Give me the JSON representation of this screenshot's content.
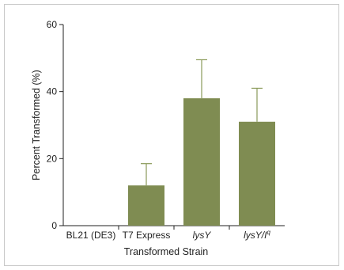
{
  "chart_data": {
    "type": "bar",
    "categories": [
      {
        "label": "BL21 (DE3)",
        "italic": false,
        "sup": ""
      },
      {
        "label": "T7 Express",
        "italic": false,
        "sup": ""
      },
      {
        "label": "lysY",
        "italic": true,
        "sup": ""
      },
      {
        "label": "lysY/I",
        "italic": true,
        "sup": "q"
      }
    ],
    "values": [
      0,
      12,
      38,
      31
    ],
    "error_upper": [
      0,
      18.5,
      49.5,
      41
    ],
    "xlabel": "Transformed Strain",
    "ylabel": "Percent Transformed (%)",
    "ylim": [
      0,
      60
    ],
    "yticks": [
      0,
      20,
      40,
      60
    ],
    "grid": false,
    "bar_color": "#7f8c52",
    "error_color": "#8a9a59"
  }
}
